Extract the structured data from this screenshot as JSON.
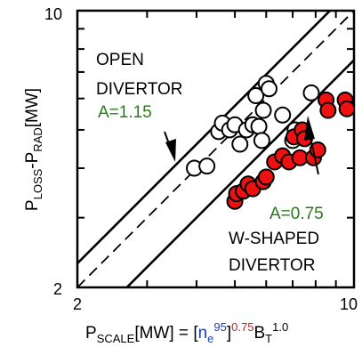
{
  "chart_data": {
    "type": "scatter",
    "x_scale": "log",
    "y_scale": "log",
    "xlim": [
      2,
      10
    ],
    "ylim": [
      2,
      10
    ],
    "x_tick_labels": [
      "2",
      "10"
    ],
    "y_tick_labels": [
      "2",
      "10"
    ],
    "xlabel": {
      "p": "P",
      "p_sub": "SCALE",
      "mw": "[MW] = ",
      "bracket_open": "[",
      "n": "n",
      "n_sub": "e",
      "n_sup": "95",
      "bracket_close": "]",
      "exp": "0.75",
      "b": "B",
      "b_sub": "T",
      "b_sup": "1.0"
    },
    "ylabel": {
      "p": "P",
      "loss_sub": "LOSS",
      "dash": "-P",
      "rad_sub": "RAD",
      "unit": "[MW]"
    },
    "series": [
      {
        "name": "OPEN DIVERTOR",
        "marker": "open-circle",
        "points": [
          [
            3.95,
            4.0
          ],
          [
            4.25,
            4.05
          ],
          [
            4.55,
            4.95
          ],
          [
            4.65,
            5.2
          ],
          [
            4.85,
            5.0
          ],
          [
            5.0,
            5.15
          ],
          [
            5.15,
            4.6
          ],
          [
            5.35,
            5.0
          ],
          [
            5.55,
            5.15
          ],
          [
            5.75,
            5.1
          ],
          [
            5.85,
            4.7
          ],
          [
            5.65,
            6.1
          ],
          [
            5.9,
            5.6
          ],
          [
            6.0,
            6.55
          ],
          [
            6.1,
            6.35
          ],
          [
            6.6,
            5.45
          ],
          [
            7.0,
            4.7
          ],
          [
            7.1,
            5.0
          ],
          [
            7.8,
            6.2
          ]
        ]
      },
      {
        "name": "W-SHAPED DIVERTOR",
        "marker": "filled-circle",
        "points": [
          [
            5.0,
            3.3
          ],
          [
            5.05,
            3.45
          ],
          [
            5.25,
            3.5
          ],
          [
            5.4,
            3.65
          ],
          [
            5.55,
            3.55
          ],
          [
            5.9,
            3.7
          ],
          [
            6.0,
            3.8
          ],
          [
            6.3,
            4.15
          ],
          [
            6.6,
            4.3
          ],
          [
            6.85,
            4.15
          ],
          [
            7.05,
            4.8
          ],
          [
            7.3,
            4.25
          ],
          [
            7.4,
            5.0
          ],
          [
            7.5,
            4.75
          ],
          [
            7.9,
            4.25
          ],
          [
            8.1,
            4.45
          ],
          [
            8.5,
            5.95
          ],
          [
            8.6,
            5.6
          ],
          [
            9.5,
            5.95
          ],
          [
            9.6,
            5.65
          ]
        ]
      }
    ],
    "lines": [
      {
        "name": "A=1.15",
        "style": "solid",
        "a": 1.15
      },
      {
        "name": "unity",
        "style": "dashed",
        "a": 1.0
      },
      {
        "name": "A=0.75",
        "style": "solid",
        "a": 0.75
      }
    ],
    "annotations": {
      "open_1": "OPEN",
      "open_2": "DIVERTOR",
      "a_open": "A=1.15",
      "a_w": "A=0.75",
      "w_1": "W-SHAPED",
      "w_2": "DIVERTOR"
    },
    "colors": {
      "filled_marker": "#ee1111",
      "annotation_green": "#2a7a1a",
      "n_label_blue": "#1f3fb0",
      "exponent_red": "#d11a1a"
    }
  }
}
